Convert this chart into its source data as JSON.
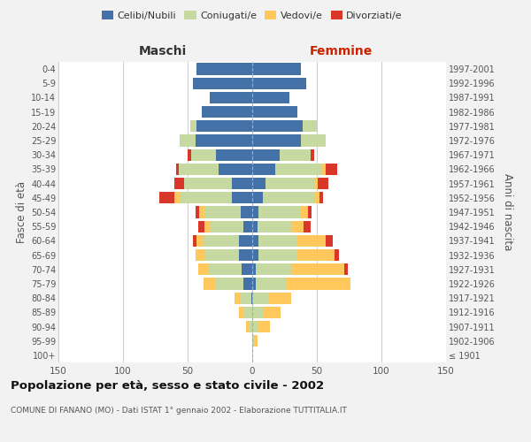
{
  "age_groups": [
    "100+",
    "95-99",
    "90-94",
    "85-89",
    "80-84",
    "75-79",
    "70-74",
    "65-69",
    "60-64",
    "55-59",
    "50-54",
    "45-49",
    "40-44",
    "35-39",
    "30-34",
    "25-29",
    "20-24",
    "15-19",
    "10-14",
    "5-9",
    "0-4"
  ],
  "birth_years": [
    "≤ 1901",
    "1902-1906",
    "1907-1911",
    "1912-1916",
    "1917-1921",
    "1922-1926",
    "1927-1931",
    "1932-1936",
    "1937-1941",
    "1942-1946",
    "1947-1951",
    "1952-1956",
    "1957-1961",
    "1962-1966",
    "1967-1971",
    "1972-1976",
    "1977-1981",
    "1982-1986",
    "1987-1991",
    "1992-1996",
    "1997-2001"
  ],
  "male": {
    "celibi": [
      0,
      0,
      0,
      0,
      1,
      7,
      8,
      10,
      10,
      7,
      9,
      16,
      16,
      26,
      28,
      44,
      43,
      39,
      33,
      46,
      43
    ],
    "coniugati": [
      0,
      0,
      3,
      6,
      8,
      22,
      26,
      26,
      28,
      26,
      28,
      40,
      37,
      31,
      19,
      12,
      5,
      0,
      0,
      0,
      0
    ],
    "vedovi": [
      0,
      0,
      2,
      4,
      5,
      9,
      8,
      8,
      5,
      4,
      4,
      4,
      0,
      0,
      0,
      0,
      0,
      0,
      0,
      0,
      0
    ],
    "divorziati": [
      0,
      0,
      0,
      0,
      0,
      0,
      0,
      0,
      3,
      5,
      3,
      12,
      7,
      2,
      3,
      0,
      0,
      0,
      0,
      0,
      0
    ]
  },
  "female": {
    "nubili": [
      0,
      0,
      0,
      0,
      0,
      3,
      3,
      5,
      5,
      4,
      5,
      8,
      10,
      18,
      21,
      38,
      39,
      35,
      29,
      42,
      38
    ],
    "coniugate": [
      0,
      2,
      5,
      9,
      12,
      23,
      28,
      29,
      30,
      26,
      33,
      40,
      38,
      36,
      24,
      19,
      11,
      0,
      0,
      0,
      0
    ],
    "vedove": [
      0,
      2,
      9,
      13,
      18,
      50,
      40,
      30,
      22,
      10,
      5,
      4,
      3,
      3,
      0,
      0,
      0,
      0,
      0,
      0,
      0
    ],
    "divorziate": [
      0,
      0,
      0,
      0,
      0,
      0,
      3,
      3,
      5,
      5,
      3,
      3,
      8,
      9,
      3,
      0,
      0,
      0,
      0,
      0,
      0
    ]
  },
  "colors": {
    "celibi": "#4472a8",
    "coniugati": "#c5d9a0",
    "vedovi": "#ffc85c",
    "divorziati": "#d9372a"
  },
  "legend_labels": [
    "Celibi/Nubili",
    "Coniugati/e",
    "Vedovi/e",
    "Divorziati/e"
  ],
  "xlim": 150,
  "title": "Popolazione per età, sesso e stato civile - 2002",
  "subtitle": "COMUNE DI FANANO (MO) - Dati ISTAT 1° gennaio 2002 - Elaborazione TUTTITALIA.IT",
  "ylabel_left": "Fasce di età",
  "ylabel_right": "Anni di nascita",
  "xlabel_left": "Maschi",
  "xlabel_right": "Femmine",
  "bg_color": "#f2f2f2",
  "plot_bg_color": "#ffffff"
}
